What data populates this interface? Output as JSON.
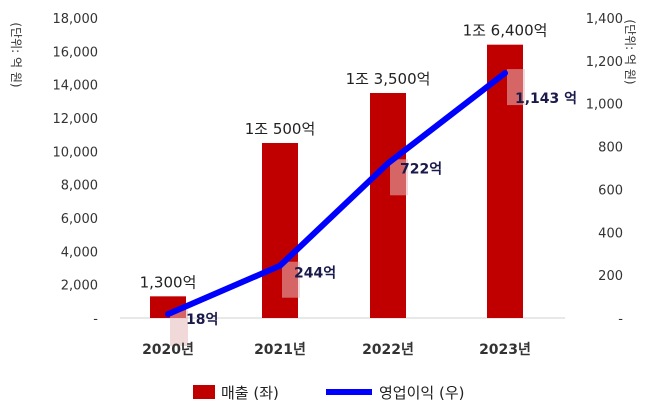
{
  "chart_data": {
    "type": "bar",
    "categories": [
      "2020년",
      "2021년",
      "2022년",
      "2023년"
    ],
    "series": [
      {
        "name": "매출 (좌)",
        "type": "bar",
        "axis": "left",
        "color": "#c00000",
        "values": [
          1300,
          10500,
          13500,
          16400
        ],
        "labels": [
          "1,300억",
          "1조 500억",
          "1조 3,500억",
          "1조 6,400억"
        ]
      },
      {
        "name": "영업이익 (우)",
        "type": "line",
        "axis": "right",
        "color": "#0000ff",
        "values": [
          18,
          244,
          722,
          1143
        ],
        "labels": [
          "18억",
          "244억",
          "722억",
          "1,143 억"
        ]
      }
    ],
    "left_axis": {
      "unit_label": "(단위: 억 원)",
      "ylim": [
        0,
        18000
      ],
      "ticks": [
        0,
        2000,
        4000,
        6000,
        8000,
        10000,
        12000,
        14000,
        16000,
        18000
      ],
      "tick_labels": [
        "-",
        "2,000",
        "4,000",
        "6,000",
        "8,000",
        "10,000",
        "12,000",
        "14,000",
        "16,000",
        "18,000"
      ]
    },
    "right_axis": {
      "unit_label": "(단위: 억 원)",
      "ylim": [
        0,
        1400
      ],
      "ticks": [
        0,
        200,
        400,
        600,
        800,
        1000,
        1200,
        1400
      ],
      "tick_labels": [
        "-",
        "200",
        "400",
        "600",
        "800",
        "1,000",
        "1,200",
        "1,400"
      ]
    },
    "legend_position": "bottom",
    "grid": false
  }
}
